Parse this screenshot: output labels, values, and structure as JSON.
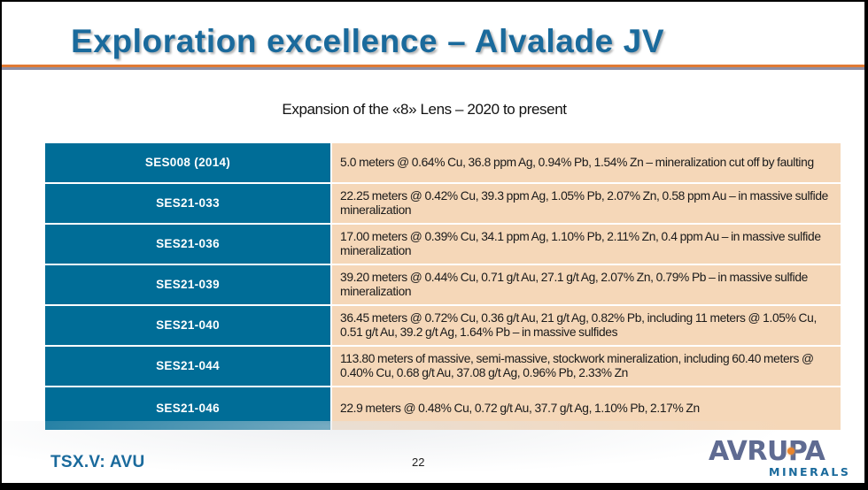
{
  "slide": {
    "title": "Exploration excellence – Alvalade JV",
    "subtitle": "Expansion of the «8» Lens – 2020 to present",
    "table": {
      "rows": [
        {
          "hole": "SES008 (2014)",
          "result": "5.0 meters @ 0.64% Cu, 36.8 ppm Ag, 0.94% Pb, 1.54% Zn – mineralization cut off by faulting"
        },
        {
          "hole": "SES21-033",
          "result": "22.25 meters @ 0.42% Cu, 39.3 ppm Ag, 1.05% Pb, 2.07% Zn,  0.58 ppm Au – in massive sulfide mineralization"
        },
        {
          "hole": "SES21-036",
          "result": "17.00 meters @ 0.39% Cu, 34.1 ppm Ag, 1.10% Pb, 2.11% Zn,  0.4 ppm Au – in massive sulfide mineralization"
        },
        {
          "hole": "SES21-039",
          "result": "39.20 meters @ 0.44% Cu, 0.71 g/t Au, 27.1 g/t Ag, 2.07% Zn, 0.79% Pb – in massive sulfide mineralization"
        },
        {
          "hole": "SES21-040",
          "result": "36.45 meters @ 0.72% Cu, 0.36 g/t Au, 21 g/t Ag, 0.82% Pb, including 11 meters @ 1.05% Cu, 0.51 g/t Au, 39.2 g/t Ag, 1.64% Pb – in massive sulfides"
        },
        {
          "hole": "SES21-044",
          "result": "113.80 meters of massive, semi-massive, stockwork mineralization, including 60.40 meters @ 0.40% Cu, 0.68 g/t Au, 37.08 g/t Ag, 0.96% Pb, 2.33% Zn"
        },
        {
          "hole": "SES21-046",
          "result": "22.9 meters @ 0.48% Cu, 0.72 g/t Au, 37.7 g/t Ag, 1.10% Pb, 2.17% Zn"
        }
      ]
    },
    "footer": {
      "ticker": "TSX.V: AVU",
      "page_number": "22",
      "logo_main": "AVRUPA",
      "logo_sub": "MINERALS"
    }
  },
  "colors": {
    "title_blue": "#1a6a9c",
    "header_cell_blue": "#006d97",
    "desc_cell_peach": "#f5d7b8",
    "rule_orange": "#e07a34",
    "rule_grey": "#8f8fa3",
    "logo_grey_blue": "#5f6b92",
    "logo_dot_orange": "#e8842c"
  }
}
